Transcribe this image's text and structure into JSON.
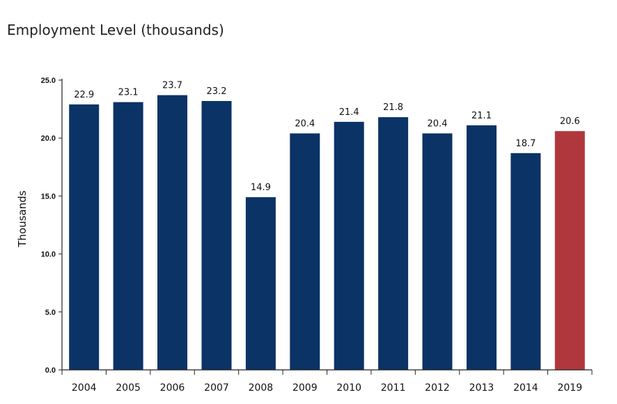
{
  "chart_data": {
    "type": "bar",
    "title": "Employment Level (thousands)",
    "xlabel": "",
    "ylabel": "Thousands",
    "categories": [
      "2004",
      "2005",
      "2006",
      "2007",
      "2008",
      "2009",
      "2010",
      "2011",
      "2012",
      "2013",
      "2014",
      "2019"
    ],
    "values": [
      22.9,
      23.1,
      23.7,
      23.2,
      14.9,
      20.4,
      21.4,
      21.8,
      20.4,
      21.1,
      18.7,
      20.6
    ],
    "data_labels": [
      "22.9",
      "23.1",
      "23.7",
      "23.2",
      "14.9",
      "20.4",
      "21.4",
      "21.8",
      "20.4",
      "21.1",
      "18.7",
      "20.6"
    ],
    "yticks": [
      "0.0",
      "5.0",
      "10.0",
      "15.0",
      "20.0",
      "25.0"
    ],
    "ytick_values": [
      0,
      5,
      10,
      15,
      20,
      25
    ],
    "ylim": [
      0,
      25
    ],
    "grid": false,
    "legend": "none",
    "bar_color": "#0b3366",
    "highlight_category": "2019",
    "highlight_color": "#b0383c"
  }
}
